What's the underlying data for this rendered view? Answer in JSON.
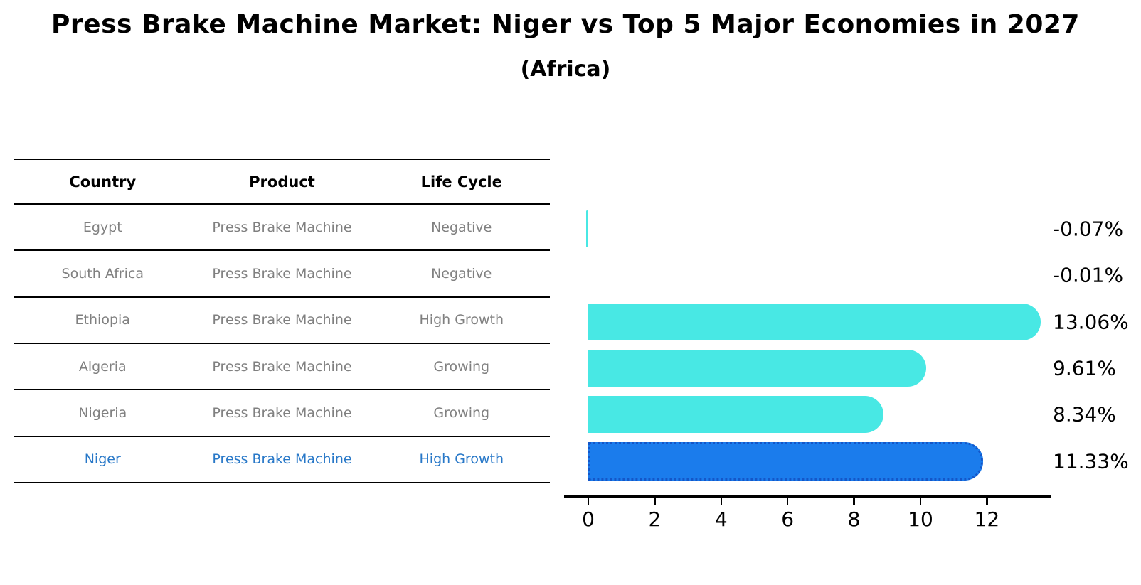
{
  "title": "Press Brake Machine Market: Niger vs Top 5 Major Economies in 2027",
  "subtitle": "(Africa)",
  "table": {
    "headers": [
      "Country",
      "Product",
      "Life Cycle"
    ],
    "rows": [
      {
        "country": "Egypt",
        "product": "Press Brake Machine",
        "life_cycle": "Negative",
        "highlight": false
      },
      {
        "country": "South Africa",
        "product": "Press Brake Machine",
        "life_cycle": "Negative",
        "highlight": false
      },
      {
        "country": "Ethiopia",
        "product": "Press Brake Machine",
        "life_cycle": "High Growth",
        "highlight": false
      },
      {
        "country": "Algeria",
        "product": "Press Brake Machine",
        "life_cycle": "Growing",
        "highlight": false
      },
      {
        "country": "Nigeria",
        "product": "Press Brake Machine",
        "life_cycle": "Growing",
        "highlight": false
      },
      {
        "country": "Niger",
        "product": "Press Brake Machine",
        "life_cycle": "High Growth",
        "highlight": true
      }
    ]
  },
  "chart_data": {
    "type": "bar",
    "orientation": "horizontal",
    "title": "Press Brake Machine Market: Niger vs Top 5 Major Economies in 2027 (Africa)",
    "categories": [
      "Egypt",
      "South Africa",
      "Ethiopia",
      "Algeria",
      "Nigeria",
      "Niger"
    ],
    "values": [
      -0.07,
      -0.01,
      13.06,
      9.61,
      8.34,
      11.33
    ],
    "value_labels": [
      "-0.07%",
      "-0.01%",
      "13.06%",
      "9.61%",
      "8.34%",
      "11.33%"
    ],
    "x_ticks": [
      0,
      2,
      4,
      6,
      8,
      10,
      12
    ],
    "xlim": [
      -0.7,
      13.9
    ],
    "xlabel": "",
    "ylabel": "",
    "grid": false,
    "legend": "none",
    "highlight_category": "Niger"
  },
  "colors": {
    "bar": "#48E8E4",
    "highlight_bar": "#1B7CEC",
    "highlight_bar_border": "#1456C8",
    "highlight_text": "#2878C8",
    "table_text": "#808080",
    "value_label": "#000000",
    "line": "#000000"
  }
}
